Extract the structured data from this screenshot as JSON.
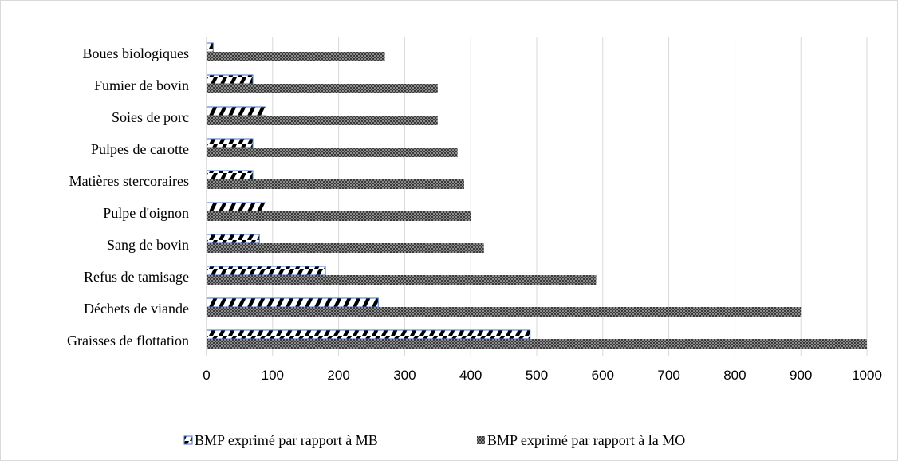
{
  "chart_data": {
    "type": "bar",
    "orientation": "horizontal",
    "categories": [
      "Graisses de flottation",
      "Déchets de viande",
      "Refus de tamisage",
      "Sang de bovin",
      "Pulpe d'oignon",
      "Matières stercoraires",
      "Pulpes de carotte",
      "Soies de porc",
      "Fumier de bovin",
      "Boues biologiques"
    ],
    "series": [
      {
        "name": "BMP exprimé par rapport à MB",
        "values": [
          490,
          260,
          180,
          80,
          90,
          70,
          70,
          90,
          70,
          10
        ],
        "pattern": "diagonal-stripes",
        "color": "#000000",
        "border_color": "#4472c4"
      },
      {
        "name": "BMP exprimé par rapport à la MO",
        "values": [
          1000,
          900,
          590,
          420,
          400,
          390,
          380,
          350,
          350,
          270
        ],
        "pattern": "checker",
        "color": "#3a3a3a"
      }
    ],
    "xlim": [
      0,
      1000
    ],
    "xticks": [
      0,
      100,
      200,
      300,
      400,
      500,
      600,
      700,
      800,
      900,
      1000
    ],
    "xlabel": "",
    "ylabel": "",
    "title": "",
    "grid": "vertical",
    "legend_position": "bottom"
  }
}
